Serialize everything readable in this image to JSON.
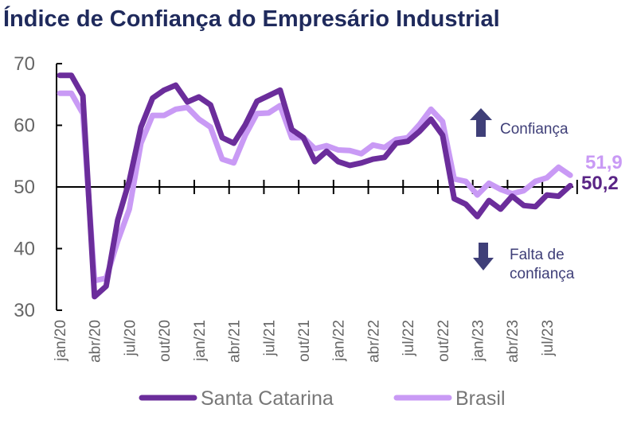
{
  "chart_data": {
    "type": "line",
    "title": "Índice de Confiança do Empresário Industrial",
    "x": [
      "jan/20",
      "fev/20",
      "mar/20",
      "abr/20",
      "mai/20",
      "jun/20",
      "jul/20",
      "ago/20",
      "set/20",
      "out/20",
      "nov/20",
      "dez/20",
      "jan/21",
      "fev/21",
      "mar/21",
      "abr/21",
      "mai/21",
      "jun/21",
      "jul/21",
      "ago/21",
      "set/21",
      "out/21",
      "nov/21",
      "dez/21",
      "jan/22",
      "fev/22",
      "mar/22",
      "abr/22",
      "mai/22",
      "jun/22",
      "jul/22",
      "ago/22",
      "set/22",
      "out/22",
      "nov/22",
      "dez/22",
      "jan/23",
      "fev/23",
      "mar/23",
      "abr/23",
      "mai/23",
      "jun/23",
      "jul/23",
      "ago/23",
      "set/23"
    ],
    "tick_labels": [
      "jan/20",
      "abr/20",
      "jul/20",
      "out/20",
      "jan/21",
      "abr/21",
      "jul/21",
      "out/21",
      "jan/22",
      "abr/22",
      "jul/22",
      "out/22",
      "jan/23",
      "abr/23",
      "jul/23"
    ],
    "yticks": [
      30,
      40,
      50,
      60,
      70
    ],
    "ylim": [
      30,
      70
    ],
    "reference_line": 50,
    "series": [
      {
        "name": "Santa Catarina",
        "color": "#6b2d9b",
        "end_label": "50,2",
        "values": [
          68.1,
          68.1,
          64.8,
          32.2,
          33.9,
          44.6,
          51.0,
          59.7,
          64.4,
          65.7,
          66.5,
          63.8,
          64.6,
          63.3,
          58.0,
          57.1,
          60.1,
          63.9,
          64.8,
          65.7,
          59.3,
          58.0,
          54.1,
          55.8,
          54.1,
          53.5,
          53.9,
          54.5,
          54.8,
          57.1,
          57.4,
          59.0,
          61.0,
          58.4,
          48.1,
          47.2,
          45.2,
          47.8,
          46.4,
          48.5,
          47.0,
          46.8,
          48.7,
          48.5,
          50.2
        ]
      },
      {
        "name": "Brasil",
        "color": "#c99af5",
        "end_label": "51,9",
        "values": [
          65.2,
          65.2,
          61.9,
          34.8,
          35.2,
          41.2,
          46.4,
          57.1,
          61.6,
          61.6,
          62.6,
          62.9,
          61.0,
          59.7,
          54.5,
          53.9,
          58.4,
          61.9,
          62.0,
          63.2,
          58.0,
          58.0,
          56.2,
          56.7,
          56.0,
          55.9,
          55.4,
          56.8,
          56.4,
          57.7,
          58.0,
          60.1,
          62.6,
          60.6,
          51.3,
          50.9,
          48.7,
          50.6,
          49.6,
          48.9,
          49.4,
          50.9,
          51.5,
          53.2,
          51.9
        ]
      }
    ],
    "annotations": {
      "up": "Confiança",
      "down_line1": "Falta de",
      "down_line2": "confiança",
      "arrow_color": "#3f3f78"
    },
    "legend_placement": "bottom",
    "grid": false
  }
}
